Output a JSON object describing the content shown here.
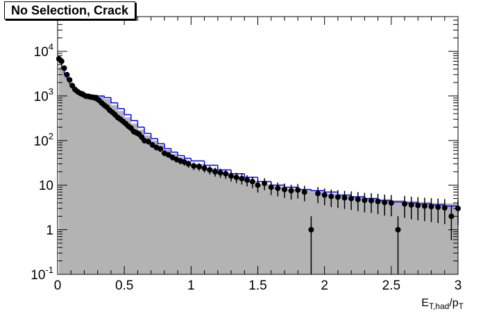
{
  "chart_data": {
    "type": "histogram",
    "title": "No Selection, Crack",
    "xlabel": {
      "main": "E",
      "sub1": "T,had",
      "mid": "/p",
      "sub2": "T"
    },
    "ylabel": "",
    "xlim": [
      0,
      3
    ],
    "ylim": [
      0.1,
      60000
    ],
    "log_y": true,
    "grid": false,
    "x_ticks": [
      {
        "value": 0,
        "label": "0"
      },
      {
        "value": 0.5,
        "label": "0.5"
      },
      {
        "value": 1,
        "label": "1"
      },
      {
        "value": 1.5,
        "label": "1.5"
      },
      {
        "value": 2,
        "label": "2"
      },
      {
        "value": 2.5,
        "label": "2.5"
      },
      {
        "value": 3,
        "label": "3"
      }
    ],
    "y_ticks": [
      {
        "value": 0.1,
        "base": "10",
        "exp": "-1"
      },
      {
        "value": 1,
        "base": "1",
        "exp": ""
      },
      {
        "value": 10,
        "base": "10",
        "exp": ""
      },
      {
        "value": 100,
        "base": "10",
        "exp": "2"
      },
      {
        "value": 1000,
        "base": "10",
        "exp": "3"
      },
      {
        "value": 10000,
        "base": "10",
        "exp": "4"
      }
    ],
    "colors": {
      "filled": "#b3b3b3",
      "outline": "#0000ff",
      "markers": "#000000"
    },
    "series": [
      {
        "style": "filled-histogram",
        "points": [
          [
            0.01,
            4500
          ],
          [
            0.03,
            3800
          ],
          [
            0.05,
            3200
          ],
          [
            0.07,
            2600
          ],
          [
            0.09,
            2200
          ],
          [
            0.11,
            1800
          ],
          [
            0.13,
            1500
          ],
          [
            0.15,
            1300
          ],
          [
            0.2,
            1100
          ],
          [
            0.25,
            1050
          ],
          [
            0.3,
            1000
          ],
          [
            0.35,
            850
          ],
          [
            0.4,
            620
          ],
          [
            0.45,
            460
          ],
          [
            0.5,
            330
          ],
          [
            0.55,
            240
          ],
          [
            0.6,
            175
          ],
          [
            0.65,
            130
          ],
          [
            0.7,
            100
          ],
          [
            0.75,
            80
          ],
          [
            0.8,
            62
          ],
          [
            0.85,
            50
          ],
          [
            0.9,
            42
          ],
          [
            0.95,
            35
          ],
          [
            1.0,
            30
          ],
          [
            1.1,
            24
          ],
          [
            1.2,
            19
          ],
          [
            1.3,
            15
          ],
          [
            1.4,
            12.5
          ],
          [
            1.5,
            10.5
          ],
          [
            1.6,
            9.5
          ],
          [
            1.7,
            8.5
          ],
          [
            1.8,
            7.8
          ],
          [
            1.9,
            7.2
          ],
          [
            2.0,
            6.5
          ],
          [
            2.1,
            6.0
          ],
          [
            2.2,
            5.6
          ],
          [
            2.3,
            5.2
          ],
          [
            2.4,
            4.9
          ],
          [
            2.5,
            4.6
          ],
          [
            2.6,
            4.4
          ],
          [
            2.7,
            4.2
          ],
          [
            2.8,
            4.0
          ],
          [
            2.9,
            3.9
          ],
          [
            3.0,
            3.8
          ]
        ]
      },
      {
        "style": "step-line",
        "points": [
          [
            0.01,
            5500
          ],
          [
            0.03,
            4200
          ],
          [
            0.05,
            3000
          ],
          [
            0.07,
            2300
          ],
          [
            0.09,
            1800
          ],
          [
            0.11,
            1500
          ],
          [
            0.13,
            1300
          ],
          [
            0.15,
            1150
          ],
          [
            0.2,
            1050
          ],
          [
            0.25,
            1030
          ],
          [
            0.3,
            1000
          ],
          [
            0.35,
            920
          ],
          [
            0.4,
            700
          ],
          [
            0.45,
            520
          ],
          [
            0.5,
            380
          ],
          [
            0.55,
            280
          ],
          [
            0.6,
            200
          ],
          [
            0.65,
            145
          ],
          [
            0.7,
            110
          ],
          [
            0.75,
            85
          ],
          [
            0.8,
            66
          ],
          [
            0.85,
            55
          ],
          [
            0.9,
            46
          ],
          [
            0.95,
            40
          ],
          [
            1.0,
            35
          ],
          [
            1.1,
            28
          ],
          [
            1.2,
            22
          ],
          [
            1.3,
            18
          ],
          [
            1.4,
            15
          ],
          [
            1.5,
            12
          ],
          [
            1.6,
            10
          ],
          [
            1.7,
            9
          ],
          [
            1.8,
            8
          ],
          [
            1.9,
            7.5
          ],
          [
            2.0,
            7
          ],
          [
            2.1,
            6
          ],
          [
            2.2,
            5.5
          ],
          [
            2.3,
            5
          ],
          [
            2.4,
            4.5
          ],
          [
            2.5,
            4.2
          ],
          [
            2.6,
            4
          ],
          [
            2.7,
            3.8
          ],
          [
            2.8,
            3.6
          ],
          [
            2.9,
            3.4
          ],
          [
            3.0,
            3.2
          ]
        ]
      },
      {
        "style": "markers",
        "points": [
          [
            0.01,
            6800
          ],
          [
            0.03,
            6000
          ],
          [
            0.05,
            4200
          ],
          [
            0.07,
            3000
          ],
          [
            0.09,
            2300
          ],
          [
            0.11,
            1700
          ],
          [
            0.13,
            1400
          ],
          [
            0.15,
            1250
          ],
          [
            0.17,
            1150
          ],
          [
            0.19,
            1080
          ],
          [
            0.21,
            1000
          ],
          [
            0.23,
            980
          ],
          [
            0.25,
            950
          ],
          [
            0.27,
            930
          ],
          [
            0.29,
            880
          ],
          [
            0.31,
            800
          ],
          [
            0.33,
            700
          ],
          [
            0.35,
            620
          ],
          [
            0.37,
            560
          ],
          [
            0.39,
            480
          ],
          [
            0.41,
            430
          ],
          [
            0.43,
            380
          ],
          [
            0.45,
            330
          ],
          [
            0.47,
            300
          ],
          [
            0.49,
            270
          ],
          [
            0.51,
            240
          ],
          [
            0.53,
            210
          ],
          [
            0.55,
            190
          ],
          [
            0.57,
            160
          ],
          [
            0.59,
            150
          ],
          [
            0.61,
            140
          ],
          [
            0.63,
            120
          ],
          [
            0.65,
            100
          ],
          [
            0.68,
            95
          ],
          [
            0.71,
            80
          ],
          [
            0.74,
            70
          ],
          [
            0.77,
            65
          ],
          [
            0.8,
            52
          ],
          [
            0.83,
            48
          ],
          [
            0.86,
            42
          ],
          [
            0.89,
            38
          ],
          [
            0.92,
            35
          ],
          [
            0.95,
            33
          ],
          [
            0.98,
            30
          ],
          [
            1.02,
            27
          ],
          [
            1.06,
            26
          ],
          [
            1.1,
            24
          ],
          [
            1.14,
            22
          ],
          [
            1.18,
            20
          ],
          [
            1.22,
            19
          ],
          [
            1.26,
            18
          ],
          [
            1.3,
            16
          ],
          [
            1.34,
            15
          ],
          [
            1.38,
            14
          ],
          [
            1.42,
            13
          ],
          [
            1.46,
            12
          ],
          [
            1.5,
            10
          ],
          [
            1.55,
            11
          ],
          [
            1.6,
            9
          ],
          [
            1.65,
            8.5
          ],
          [
            1.7,
            8
          ],
          [
            1.75,
            7.5
          ],
          [
            1.8,
            7.8
          ],
          [
            1.85,
            7
          ],
          [
            1.9,
            1
          ],
          [
            1.95,
            6.5
          ],
          [
            2.0,
            6
          ],
          [
            2.05,
            5.6
          ],
          [
            2.1,
            5.4
          ],
          [
            2.15,
            5.2
          ],
          [
            2.2,
            5
          ],
          [
            2.25,
            4.8
          ],
          [
            2.3,
            4.6
          ],
          [
            2.35,
            4.5
          ],
          [
            2.4,
            4.3
          ],
          [
            2.45,
            4.1
          ],
          [
            2.5,
            4
          ],
          [
            2.55,
            1
          ],
          [
            2.6,
            3.8
          ],
          [
            2.65,
            3.6
          ],
          [
            2.7,
            3.5
          ],
          [
            2.75,
            3.4
          ],
          [
            2.8,
            3.3
          ],
          [
            2.85,
            3.2
          ],
          [
            2.9,
            3.1
          ],
          [
            2.95,
            2
          ],
          [
            3.0,
            3
          ]
        ]
      }
    ]
  }
}
